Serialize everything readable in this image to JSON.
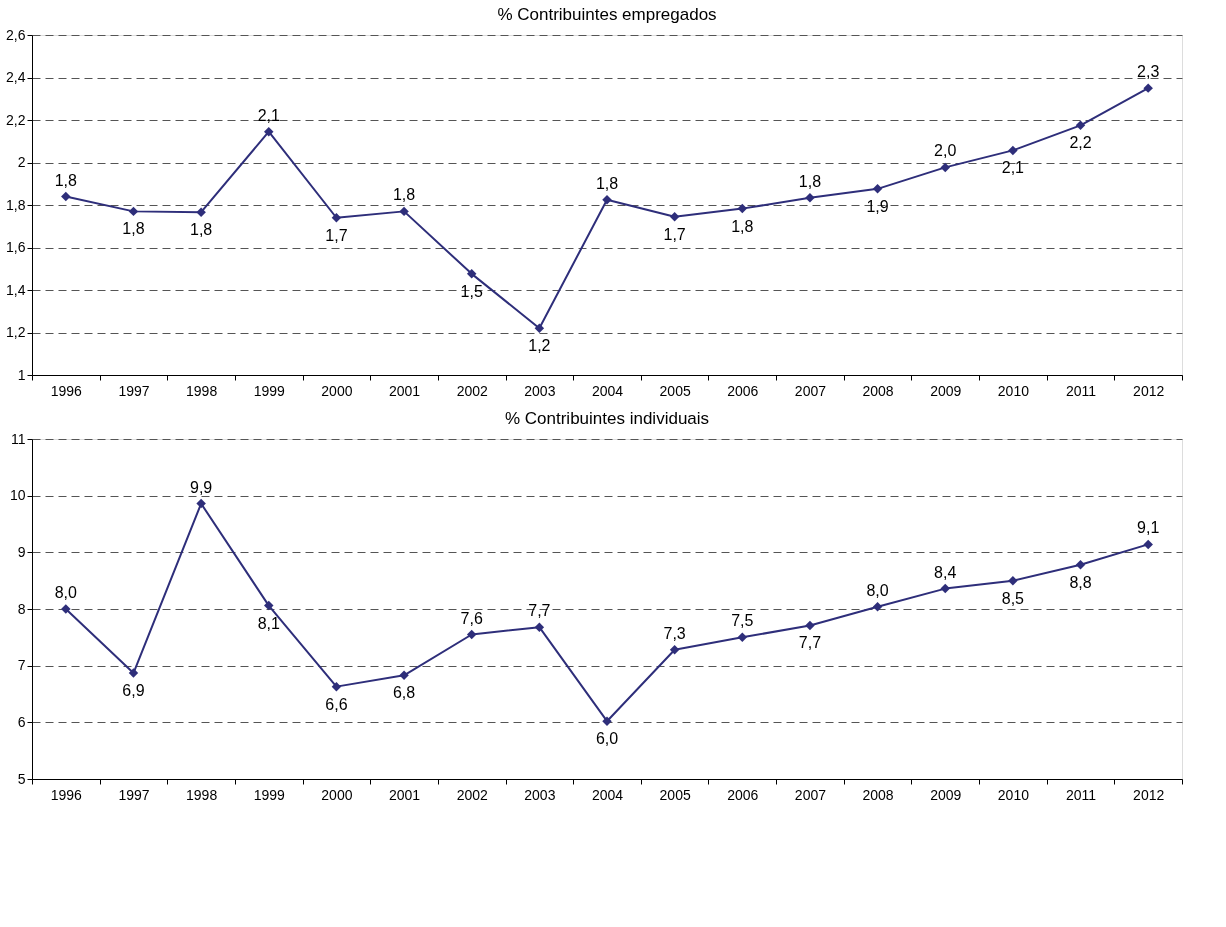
{
  "chart_data": [
    {
      "type": "line",
      "title": "% Contribuintes empregados",
      "categories": [
        "1996",
        "1997",
        "1998",
        "1999",
        "2000",
        "2001",
        "2002",
        "2003",
        "2004",
        "2005",
        "2006",
        "2007",
        "2008",
        "2009",
        "2010",
        "2011",
        "2012"
      ],
      "series": [
        {
          "color": "#2e2e7a",
          "values": [
            1.84,
            1.77,
            1.766,
            2.145,
            1.74,
            1.77,
            1.476,
            1.22,
            1.825,
            1.745,
            1.783,
            1.834,
            1.876,
            1.977,
            2.057,
            2.175,
            2.35
          ],
          "value_labels": [
            "1,8",
            "1,8",
            "1,8",
            "2,1",
            "1,7",
            "1,8",
            "1,5",
            "1,2",
            "1,8",
            "1,7",
            "1,8",
            "1,8",
            "1,9",
            "2,0",
            "2,1",
            "2,2",
            "2,3"
          ]
        }
      ],
      "ylim": [
        1,
        2.6
      ],
      "yticks": [
        {
          "value": 1,
          "label": "1"
        },
        {
          "value": 1.2,
          "label": "1,2"
        },
        {
          "value": 1.4,
          "label": "1,4"
        },
        {
          "value": 1.6,
          "label": "1,6"
        },
        {
          "value": 1.8,
          "label": "1,8"
        },
        {
          "value": 2,
          "label": "2"
        },
        {
          "value": 2.2,
          "label": "2,2"
        },
        {
          "value": 2.4,
          "label": "2,4"
        },
        {
          "value": 2.6,
          "label": "2,6"
        }
      ],
      "grid": "y",
      "marker": "diamond",
      "line_style": "solid"
    },
    {
      "type": "line",
      "title": "% Contribuintes individuais",
      "categories": [
        "1996",
        "1997",
        "1998",
        "1999",
        "2000",
        "2001",
        "2002",
        "2003",
        "2004",
        "2005",
        "2006",
        "2007",
        "2008",
        "2009",
        "2010",
        "2011",
        "2012"
      ],
      "series": [
        {
          "color": "#2e2e7a",
          "values": [
            8.0,
            6.87,
            9.86,
            8.06,
            6.63,
            6.83,
            7.55,
            7.68,
            6.02,
            7.28,
            7.5,
            7.71,
            8.04,
            8.36,
            8.5,
            8.78,
            9.14
          ],
          "value_labels": [
            "8,0",
            "6,9",
            "9,9",
            "8,1",
            "6,6",
            "6,8",
            "7,6",
            "7,7",
            "6,0",
            "7,3",
            "7,5",
            "7,7",
            "8,0",
            "8,4",
            "8,5",
            "8,8",
            "9,1"
          ]
        }
      ],
      "ylim": [
        5,
        11
      ],
      "yticks": [
        5,
        6,
        7,
        8,
        9,
        10,
        11
      ],
      "grid": "y",
      "marker": "diamond",
      "line_style": "solid"
    }
  ]
}
